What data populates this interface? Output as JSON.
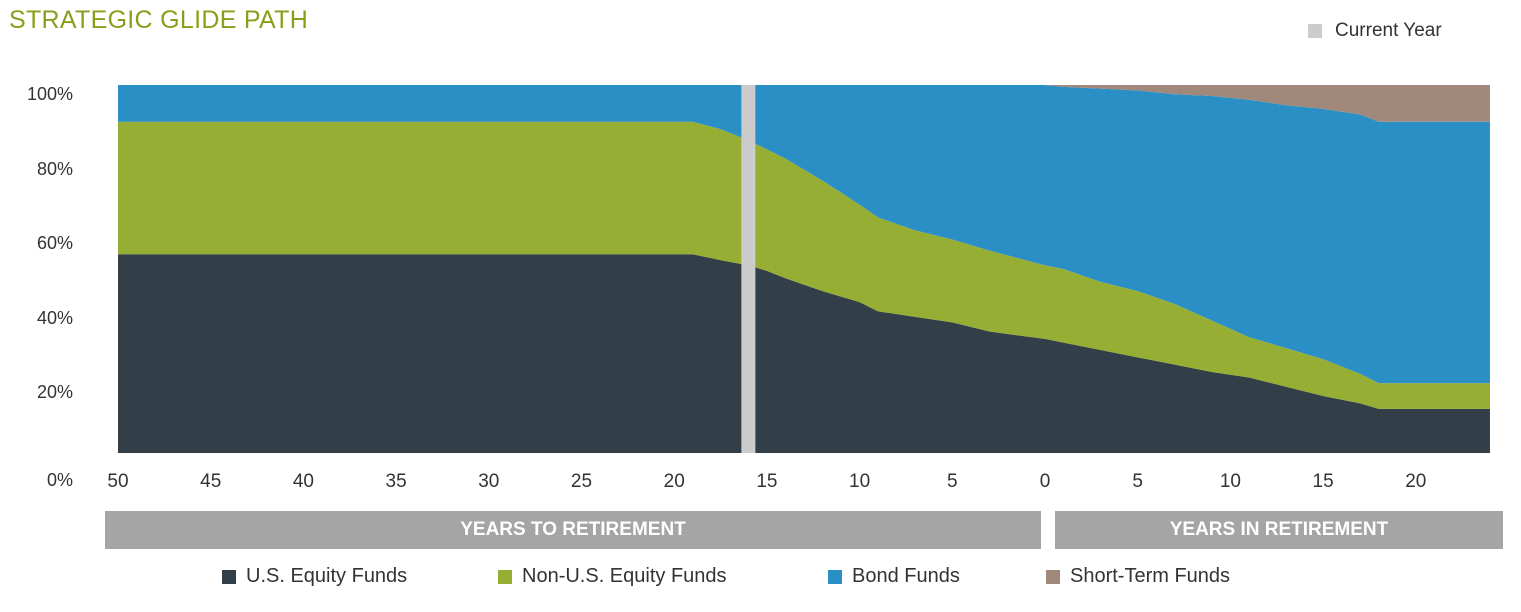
{
  "chart_data": {
    "type": "area",
    "stacked": true,
    "title": "STRATEGIC GLIDE PATH",
    "xlabel_groups": [
      "YEARS TO RETIREMENT",
      "YEARS IN RETIREMENT"
    ],
    "x_ticks": [
      {
        "phase": "to",
        "label": "50"
      },
      {
        "phase": "to",
        "label": "45"
      },
      {
        "phase": "to",
        "label": "40"
      },
      {
        "phase": "to",
        "label": "35"
      },
      {
        "phase": "to",
        "label": "30"
      },
      {
        "phase": "to",
        "label": "25"
      },
      {
        "phase": "to",
        "label": "20"
      },
      {
        "phase": "to",
        "label": "15"
      },
      {
        "phase": "to",
        "label": "10"
      },
      {
        "phase": "to",
        "label": "5"
      },
      {
        "phase": "to",
        "label": "0"
      },
      {
        "phase": "in",
        "label": "5"
      },
      {
        "phase": "in",
        "label": "10"
      },
      {
        "phase": "in",
        "label": "15"
      },
      {
        "phase": "in",
        "label": "20"
      }
    ],
    "y_ticks": [
      "100%",
      "80%",
      "60%",
      "40%",
      "20%",
      "0%"
    ],
    "ylim": [
      0,
      100
    ],
    "current_year": {
      "label": "Current Year",
      "phase": "to",
      "years": 16,
      "color": "#cccccc"
    },
    "series": [
      {
        "name": "U.S. Equity Funds",
        "color": "#333f48"
      },
      {
        "name": "Non-U.S. Equity Funds",
        "color": "#97ae34"
      },
      {
        "name": "Bond Funds",
        "color": "#2a8fc4"
      },
      {
        "name": "Short-Term Funds",
        "color": "#a0887a"
      }
    ],
    "points": [
      {
        "phase": "to",
        "years": 50,
        "values": [
          54,
          36,
          10,
          0
        ]
      },
      {
        "phase": "to",
        "years": 19,
        "values": [
          54,
          36,
          10,
          0
        ]
      },
      {
        "phase": "to",
        "years": 17.5,
        "values": [
          52.4,
          35.6,
          12,
          0
        ]
      },
      {
        "phase": "to",
        "years": 16,
        "values": [
          51,
          34,
          15,
          0
        ]
      },
      {
        "phase": "to",
        "years": 15,
        "values": [
          49.5,
          33,
          17.5,
          0
        ]
      },
      {
        "phase": "to",
        "years": 14,
        "values": [
          47.5,
          32.5,
          20,
          0
        ]
      },
      {
        "phase": "to",
        "years": 12,
        "values": [
          44,
          30,
          26,
          0
        ]
      },
      {
        "phase": "to",
        "years": 10,
        "values": [
          41,
          26.5,
          32.5,
          0
        ]
      },
      {
        "phase": "to",
        "years": 9,
        "values": [
          38.5,
          25.5,
          36,
          0
        ]
      },
      {
        "phase": "to",
        "years": 7,
        "values": [
          37,
          23.5,
          39.5,
          0
        ]
      },
      {
        "phase": "to",
        "years": 5,
        "values": [
          35.5,
          22.5,
          42,
          0
        ]
      },
      {
        "phase": "to",
        "years": 3,
        "values": [
          33,
          22,
          45,
          0
        ]
      },
      {
        "phase": "to",
        "years": 0,
        "values": [
          31,
          20,
          49,
          0
        ]
      },
      {
        "phase": "in",
        "years": 1,
        "values": [
          30,
          20,
          49.5,
          0.5
        ]
      },
      {
        "phase": "in",
        "years": 3,
        "values": [
          28,
          18.5,
          52.5,
          1
        ]
      },
      {
        "phase": "in",
        "years": 5,
        "values": [
          26,
          18,
          54.5,
          1.5
        ]
      },
      {
        "phase": "in",
        "years": 7,
        "values": [
          24,
          16.5,
          57,
          2.5
        ]
      },
      {
        "phase": "in",
        "years": 9,
        "values": [
          22,
          14,
          61,
          3
        ]
      },
      {
        "phase": "in",
        "years": 11,
        "values": [
          20.5,
          11,
          64.5,
          4
        ]
      },
      {
        "phase": "in",
        "years": 13,
        "values": [
          18,
          10.5,
          66,
          5.5
        ]
      },
      {
        "phase": "in",
        "years": 15,
        "values": [
          15.5,
          10,
          68,
          6.5
        ]
      },
      {
        "phase": "in",
        "years": 17,
        "values": [
          13.5,
          8,
          70.5,
          8
        ]
      },
      {
        "phase": "in",
        "years": 18,
        "values": [
          12,
          7,
          71,
          10
        ]
      },
      {
        "phase": "in",
        "years": 24,
        "values": [
          12,
          7,
          71,
          10
        ]
      }
    ],
    "legend_position": "bottom"
  }
}
